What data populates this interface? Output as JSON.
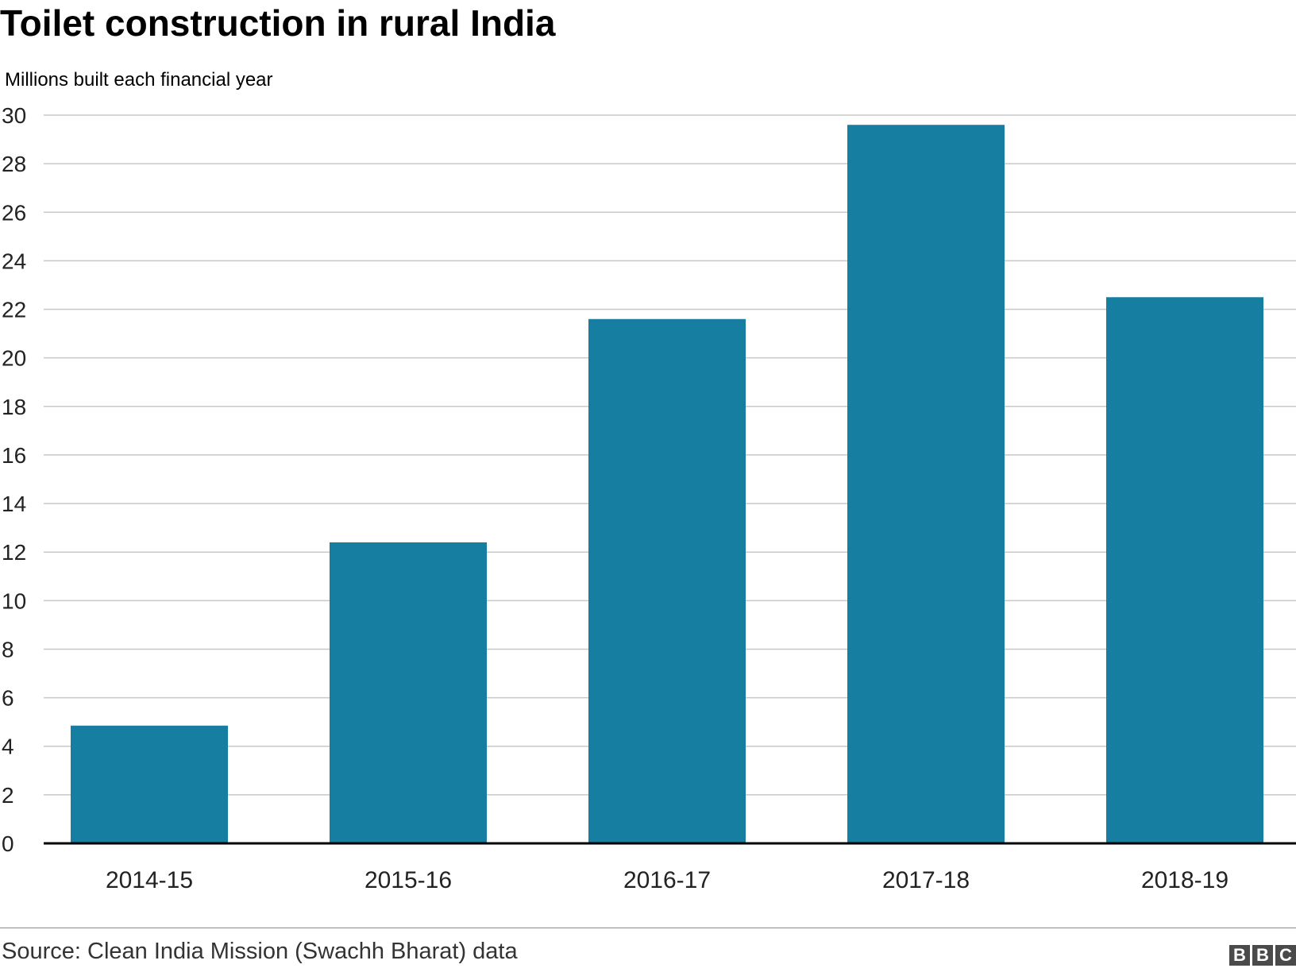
{
  "header": {
    "title": "Toilet construction in rural India",
    "subtitle": "Millions built each financial year"
  },
  "footer": {
    "source": "Source: Clean India Mission (Swachh Bharat) data",
    "logo_letters": [
      "B",
      "B",
      "C"
    ]
  },
  "colors": {
    "bar": "#167fa1",
    "grid": "#c8c8c8",
    "axis": "#000000"
  },
  "chart_data": {
    "type": "bar",
    "title": "Toilet construction in rural India",
    "subtitle": "Millions built each financial year",
    "xlabel": "",
    "ylabel": "",
    "categories": [
      "2014-15",
      "2015-16",
      "2016-17",
      "2017-18",
      "2018-19"
    ],
    "values": [
      4.85,
      12.4,
      21.6,
      29.6,
      22.5
    ],
    "ylim": [
      0,
      30
    ],
    "yticks": [
      0,
      2,
      4,
      6,
      8,
      10,
      12,
      14,
      16,
      18,
      20,
      22,
      24,
      26,
      28,
      30
    ],
    "grid": true,
    "legend": "none"
  }
}
